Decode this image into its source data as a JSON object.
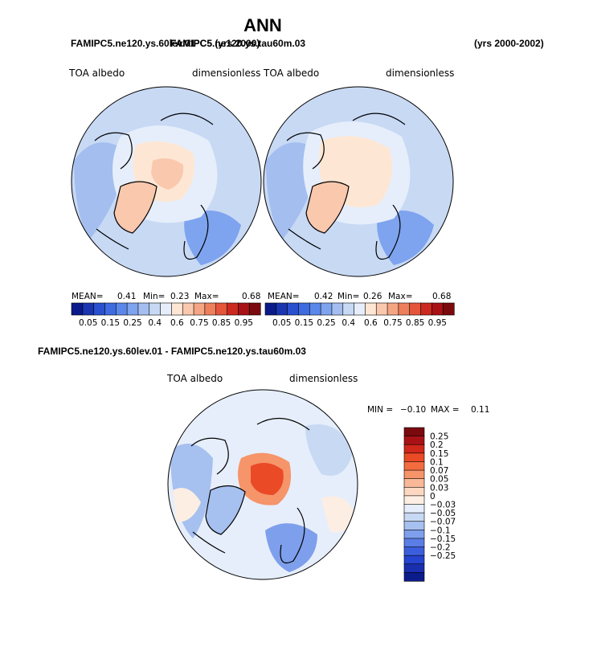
{
  "chart_data": {
    "type": "heatmap",
    "title": "ANN",
    "top_left_heading": "FAMIPC5.ne120.ys.60lev.01",
    "top_left_heading_overlap": "FAMIPC5 (yrs 2000)",
    "top_right_heading": "FAMIPC5.ne120.ys.tau60m.03",
    "top_right_years": "(yrs 2000-2002)",
    "diff_heading": "FAMIPC5.ne120.ys.60lev.01 - FAMIPC5.ne120.ys.tau60m.03",
    "variable": "TOA albedo",
    "units": "dimensionless",
    "panels": [
      {
        "id": "model1",
        "mean_label": "MEAN=",
        "mean": "0.41",
        "min_label": "Min=",
        "min": "0.23",
        "max_label": "Max=",
        "max": "0.68"
      },
      {
        "id": "model2",
        "mean_label": "MEAN=",
        "mean": "0.42",
        "min_label": "Min=",
        "min": "0.26",
        "max_label": "Max=",
        "max": "0.68"
      }
    ],
    "abs_colorbar": {
      "colors": [
        "#0a1a8a",
        "#1a35b0",
        "#2a50cf",
        "#3e6be0",
        "#5b87ea",
        "#7ea3ef",
        "#a3beef",
        "#c8d9f4",
        "#e6eefb",
        "#fde7d4",
        "#f9c8ad",
        "#f4a583",
        "#ee7f5b",
        "#e4553a",
        "#cc2a20",
        "#a81216",
        "#7a0a0e"
      ],
      "labels": [
        "0.05",
        "0.15",
        "0.25",
        "0.4",
        "0.6",
        "0.75",
        "0.85",
        "0.95"
      ]
    },
    "diff_stats": {
      "min_label": "MIN =",
      "min": "−0.10",
      "max_label": "MAX =",
      "max": "0.11"
    },
    "diff_colorbar": {
      "colors": [
        "#7a0a0e",
        "#a81216",
        "#d0281a",
        "#ea4a26",
        "#f26c40",
        "#f6946a",
        "#f9b897",
        "#fcd8c2",
        "#fdeee3",
        "#e6eefb",
        "#c8d9f4",
        "#a6c0f0",
        "#7e9fec",
        "#5a7de6",
        "#3c5edc",
        "#2544cf",
        "#1a2fae",
        "#0c1b8a"
      ],
      "labels": [
        "0.25",
        "0.2",
        "0.15",
        "0.1",
        "0.07",
        "0.05",
        "0.03",
        "0",
        "−0.03",
        "−0.05",
        "−0.07",
        "−0.1",
        "−0.15",
        "−0.2",
        "−0.25"
      ]
    },
    "map_colors": {
      "ocean_light": "#c8d9f4",
      "ocean_mid": "#a3beef",
      "ocean_dark": "#7ea3ef",
      "ice": "#e6eefb",
      "warm": "#fde7d4",
      "warm_mid": "#f9c8ad",
      "diff_pos": "#f6946a",
      "diff_hot": "#ea4a26"
    }
  }
}
